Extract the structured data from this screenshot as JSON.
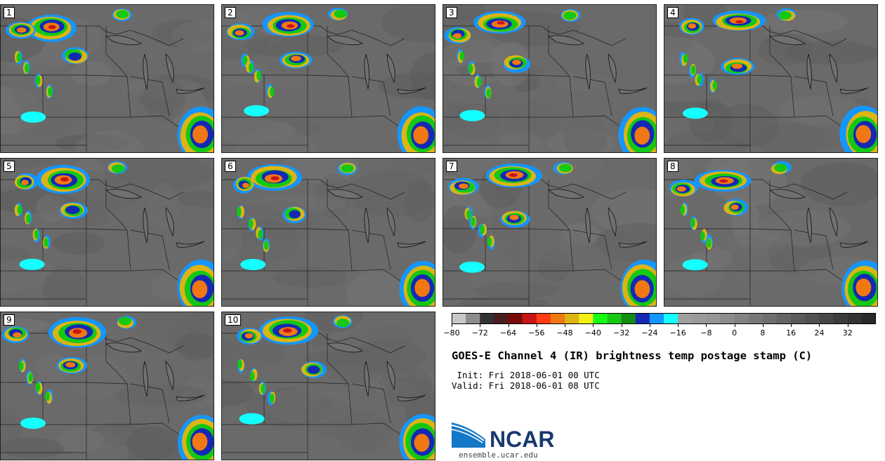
{
  "panels": [
    {
      "label": "1"
    },
    {
      "label": "2"
    },
    {
      "label": "3"
    },
    {
      "label": "4"
    },
    {
      "label": "5"
    },
    {
      "label": "6"
    },
    {
      "label": "7"
    },
    {
      "label": "8"
    },
    {
      "label": "9"
    },
    {
      "label": "10"
    }
  ],
  "colorbar": {
    "colors": [
      "#c8c8c8",
      "#8c8c8c",
      "#323232",
      "#4b1c1c",
      "#780a0a",
      "#c81414",
      "#ff3c14",
      "#f07814",
      "#dcb414",
      "#f0f014",
      "#14ff14",
      "#14c814",
      "#148c14",
      "#1428b4",
      "#1496ff",
      "#14ffff",
      "#a0a0a0",
      "#9b9b9b",
      "#969696",
      "#8c8c8c",
      "#828282",
      "#787878",
      "#6e6e6e",
      "#646464",
      "#5a5a5a",
      "#505050",
      "#464646",
      "#3c3c3c",
      "#323232",
      "#282828"
    ],
    "tick_values": [
      "−80",
      "−72",
      "−64",
      "−56",
      "−48",
      "−40",
      "−32",
      "−24",
      "−16",
      "−8",
      "0",
      "8",
      "16",
      "24",
      "32"
    ]
  },
  "title": "GOES-E Channel 4 (IR) brightness temp postage stamp (C)",
  "init": " Init: Fri 2018-06-01 00 UTC",
  "valid": "Valid: Fri 2018-06-01 08 UTC",
  "logo_text": "NCAR",
  "logo_url": "ensemble.ucar.edu"
}
